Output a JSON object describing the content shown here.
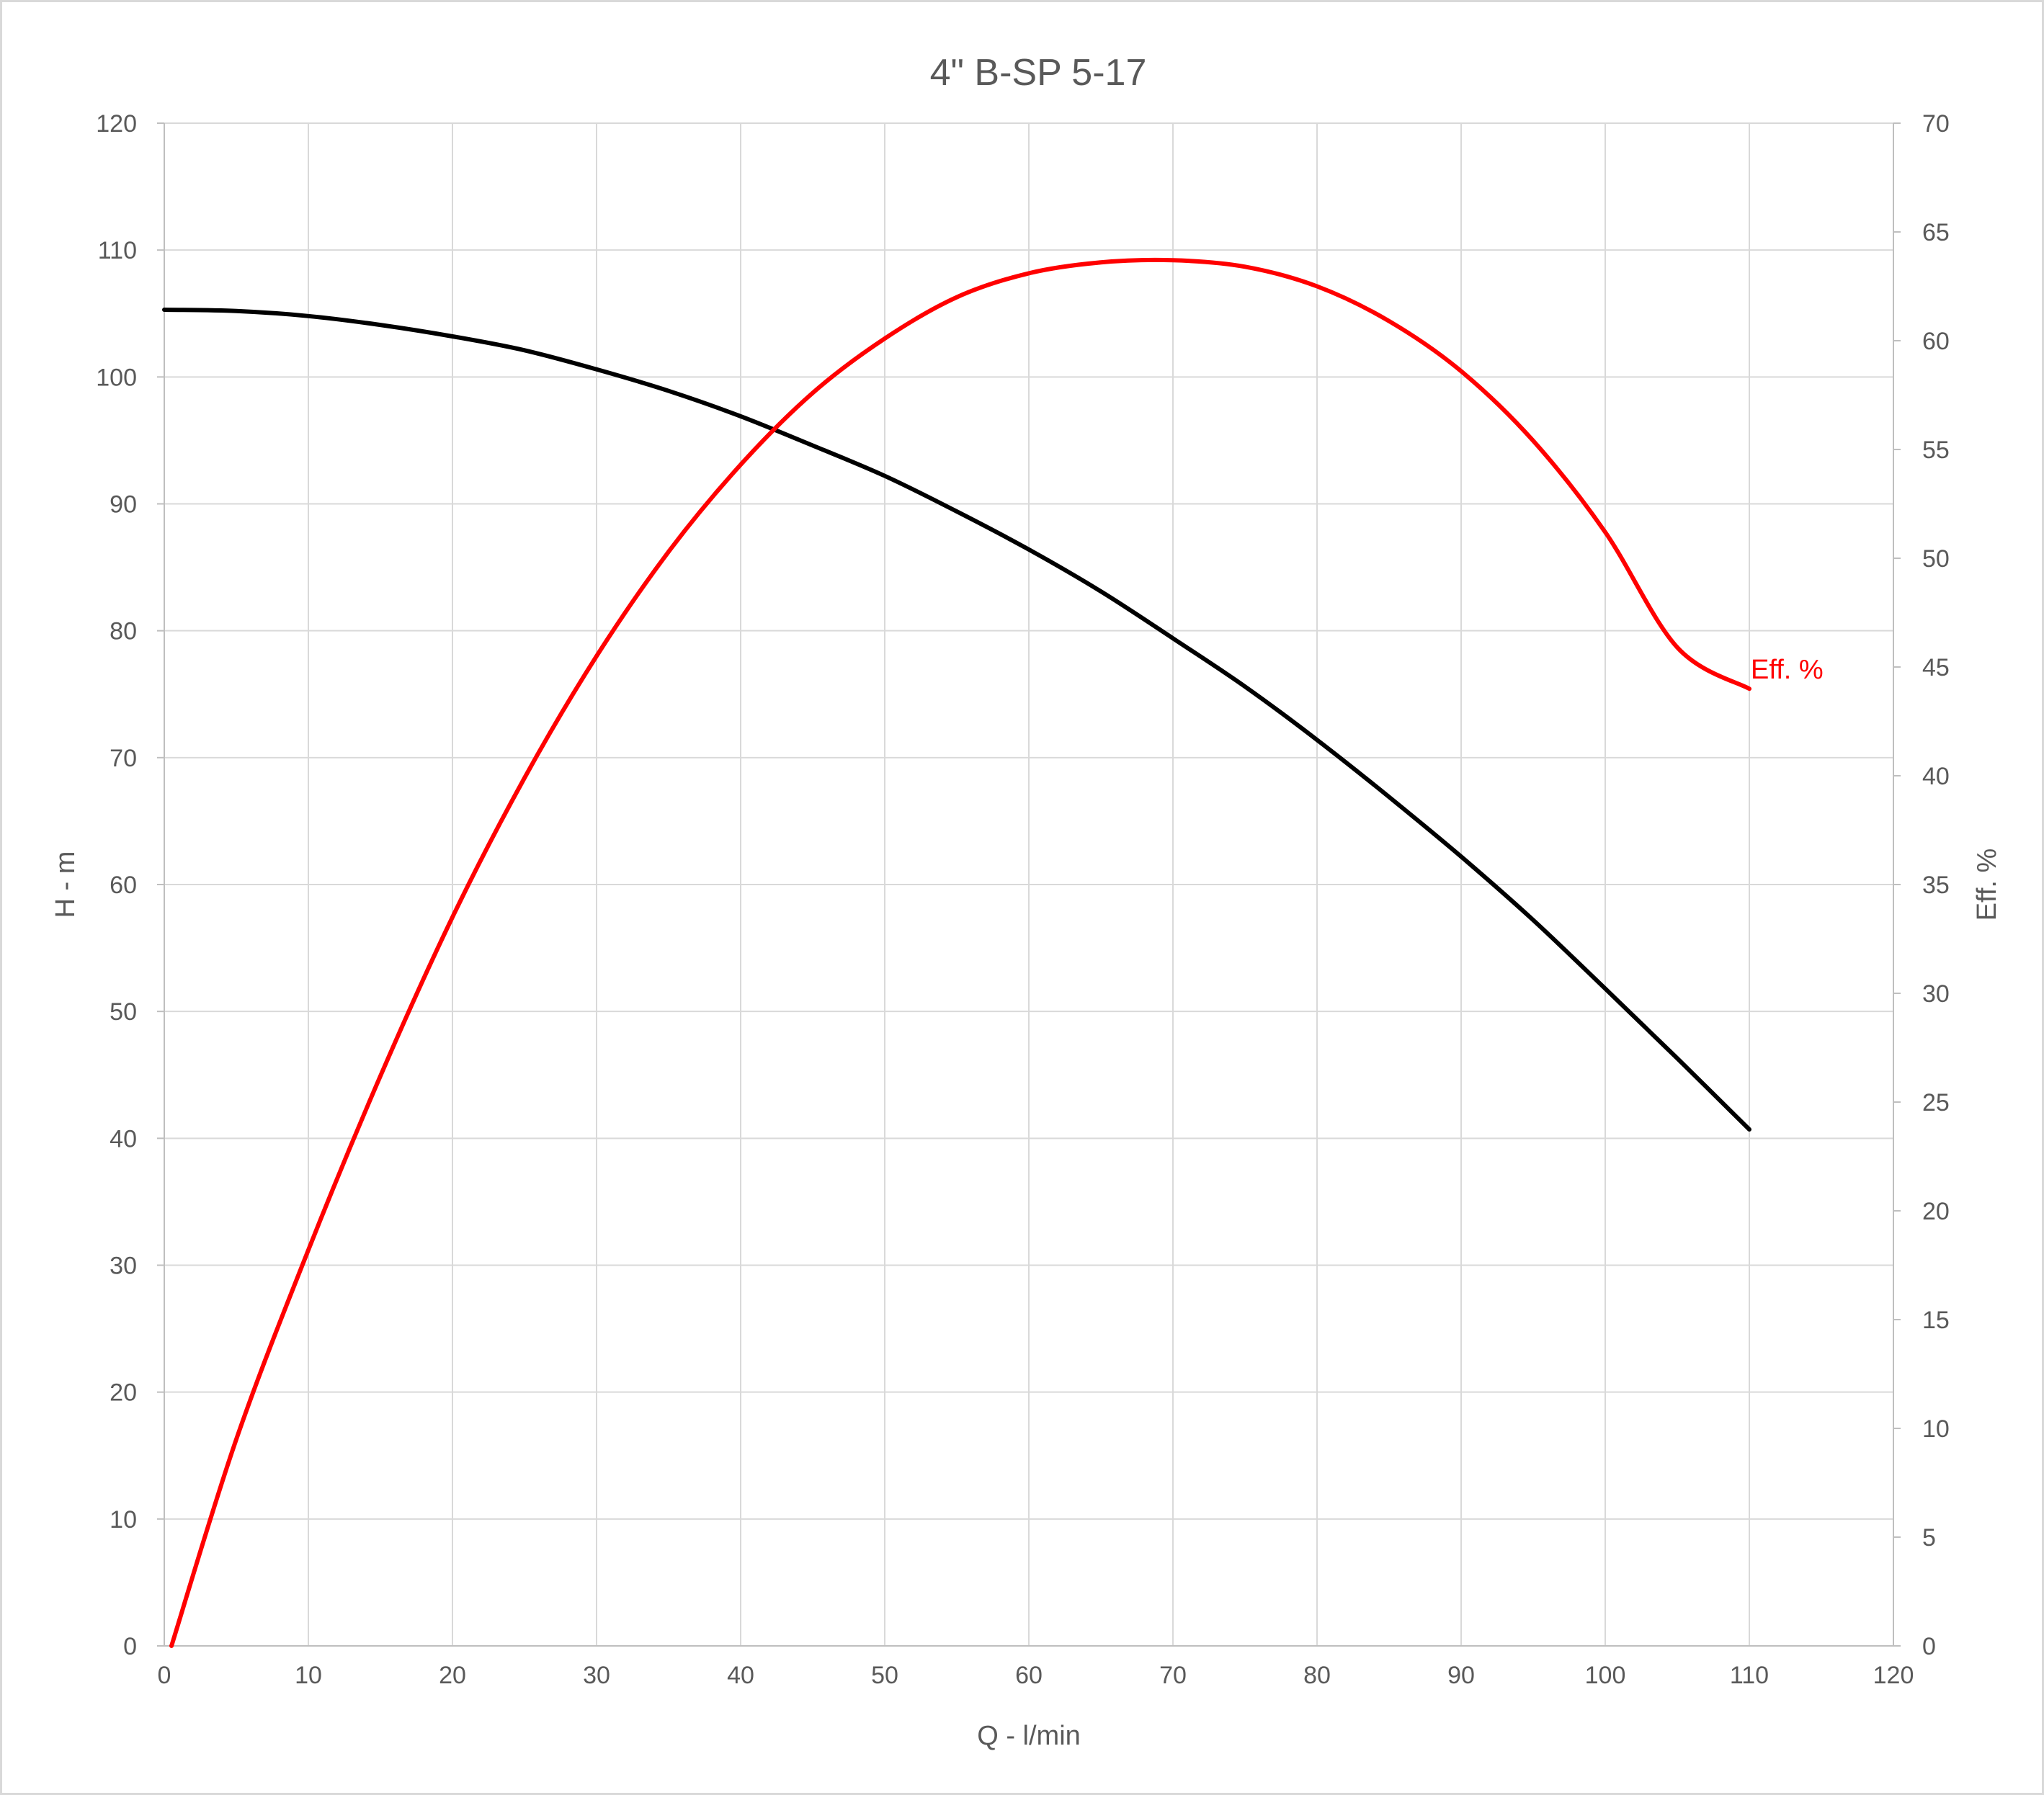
{
  "chart_data": {
    "type": "line",
    "title": "4\" B-SP 5-17",
    "xlabel": "Q - l/min",
    "ylabel": "H - m",
    "y2label": "Eff. %",
    "xlim": [
      0,
      120
    ],
    "ylim": [
      0,
      120
    ],
    "y2lim": [
      0,
      70
    ],
    "x_ticks": [
      0,
      10,
      20,
      30,
      40,
      50,
      60,
      70,
      80,
      90,
      100,
      110,
      120
    ],
    "y_ticks": [
      0,
      10,
      20,
      30,
      40,
      50,
      60,
      70,
      80,
      90,
      100,
      110,
      120
    ],
    "y2_ticks": [
      0,
      5,
      10,
      15,
      20,
      25,
      30,
      35,
      40,
      45,
      50,
      55,
      60,
      65,
      70
    ],
    "grid": true,
    "legend": "none",
    "series": [
      {
        "axis": "left",
        "color": "#000000",
        "x": [
          0,
          5,
          10,
          15,
          20,
          25,
          30,
          35,
          40,
          45,
          50,
          55,
          60,
          65,
          70,
          75,
          80,
          85,
          90,
          95,
          100,
          105,
          110
        ],
        "values": [
          105.3,
          105.2,
          104.8,
          104.1,
          103.2,
          102.1,
          100.6,
          98.9,
          96.9,
          94.6,
          92.2,
          89.4,
          86.4,
          83.1,
          79.4,
          75.6,
          71.4,
          66.9,
          62.2,
          57.2,
          51.8,
          46.3,
          40.7
        ]
      },
      {
        "name": "Eff. %",
        "axis": "right",
        "color": "#ff0000",
        "x": [
          0.5,
          5,
          10,
          15,
          20,
          25,
          30,
          35,
          40,
          45,
          50,
          55,
          60,
          65,
          70,
          75,
          80,
          85,
          90,
          95,
          100,
          105,
          110
        ],
        "values": [
          0,
          9.5,
          18.2,
          26.2,
          33.5,
          39.9,
          45.5,
          50.3,
          54.3,
          57.6,
          60.1,
          62.0,
          63.1,
          63.6,
          63.7,
          63.4,
          62.5,
          60.9,
          58.6,
          55.4,
          51.2,
          45.9,
          44.0
        ]
      }
    ]
  }
}
